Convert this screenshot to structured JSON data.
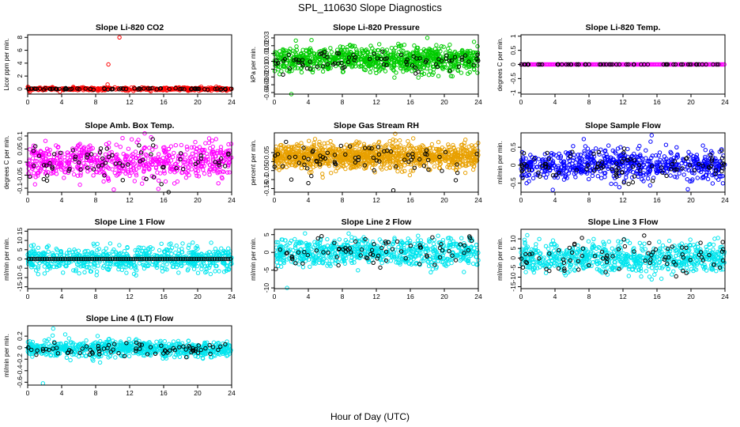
{
  "figure": {
    "title": "SPL_110630  Slope Diagnostics",
    "xlabel": "Hour of Day (UTC)"
  },
  "chart_data": [
    {
      "type": "scatter",
      "title": "Slope Li-820 CO2",
      "ylabel": "Licor ppm per min.",
      "xlim": [
        0,
        24
      ],
      "ylim": [
        -0.8,
        8.4
      ],
      "xticks": [
        0,
        4,
        8,
        12,
        16,
        20,
        24
      ],
      "yticks": [
        0,
        2,
        4,
        6,
        8
      ],
      "grid": false,
      "series": [
        {
          "color": "#ff0000",
          "style": "dense",
          "n": 380,
          "center": 0.0,
          "spread": 0.12,
          "outliers": [
            [
              9.5,
              3.8
            ],
            [
              10.8,
              8.0
            ],
            [
              9.4,
              0.7
            ],
            [
              3.8,
              -0.45
            ]
          ]
        },
        {
          "color": "#000000",
          "style": "hourly",
          "n": 75,
          "center": 0.0,
          "spread": 0.05
        }
      ]
    },
    {
      "type": "scatter",
      "title": "Slope Li-820 Pressure",
      "ylabel": "kPa per min.",
      "xlim": [
        0,
        24
      ],
      "ylim": [
        -0.042,
        0.034
      ],
      "xticks": [
        0,
        4,
        8,
        12,
        16,
        20,
        24
      ],
      "yticks": [
        -0.04,
        -0.03,
        -0.02,
        -0.01,
        0.0,
        0.01,
        0.02,
        0.03
      ],
      "grid": false,
      "series": [
        {
          "color": "#00cc00",
          "style": "dense",
          "n": 900,
          "center": 0.002,
          "spread": 0.008,
          "outliers": [
            [
              2.0,
              -0.043
            ],
            [
              18.0,
              0.03
            ],
            [
              23.5,
              0.025
            ]
          ]
        },
        {
          "color": "#000000",
          "style": "hourly",
          "n": 80,
          "center": 0.0,
          "spread": 0.006
        }
      ]
    },
    {
      "type": "scatter",
      "title": "Slope Li-820 Temp.",
      "ylabel": "degrees C per min.",
      "xlim": [
        0,
        24
      ],
      "ylim": [
        -1.05,
        1.05
      ],
      "xticks": [
        0,
        4,
        8,
        12,
        16,
        20,
        24
      ],
      "yticks": [
        -1.0,
        -0.5,
        0.0,
        0.5,
        1.0
      ],
      "grid": false,
      "series": [
        {
          "color": "#ff00ff",
          "style": "line",
          "n": 180,
          "center": 0.0,
          "spread": 0.0,
          "outliers": []
        },
        {
          "color": "#000000",
          "style": "hourly",
          "n": 60,
          "center": 0.0,
          "spread": 0.0
        }
      ]
    },
    {
      "type": "scatter",
      "title": "Slope Amb. Box Temp.",
      "ylabel": "degrees C per min.",
      "xlim": [
        0,
        24
      ],
      "ylim": [
        -0.115,
        0.112
      ],
      "xticks": [
        0,
        4,
        8,
        12,
        16,
        20,
        24
      ],
      "yticks": [
        -0.1,
        -0.05,
        0.0,
        0.05,
        0.1
      ],
      "grid": false,
      "series": [
        {
          "color": "#ff00ff",
          "style": "dense",
          "n": 650,
          "center": 0.0,
          "spread": 0.035,
          "outliers": []
        },
        {
          "color": "#000000",
          "style": "hourly",
          "n": 70,
          "center": 0.0,
          "spread": 0.035
        }
      ]
    },
    {
      "type": "scatter",
      "title": "Slope Gas Stream RH",
      "ylabel": "percent per min.",
      "xlim": [
        0,
        24
      ],
      "ylim": [
        -0.17,
        0.16
      ],
      "xticks": [
        0,
        4,
        8,
        12,
        16,
        20,
        24
      ],
      "yticks": [
        -0.15,
        -0.1,
        -0.05,
        0.0,
        0.05
      ],
      "grid": false,
      "series": [
        {
          "color": "#e8a000",
          "style": "dense",
          "n": 1100,
          "center": 0.03,
          "spread": 0.035,
          "outliers": []
        },
        {
          "color": "#000000",
          "style": "hourly",
          "n": 70,
          "center": 0.02,
          "spread": 0.04,
          "outliers": [
            [
              2.0,
              -0.1
            ],
            [
              4.0,
              -0.12
            ],
            [
              14.0,
              -0.16
            ]
          ]
        }
      ]
    },
    {
      "type": "scatter",
      "title": "Slope Sample Flow",
      "ylabel": "ml/min per min.",
      "xlim": [
        0,
        24
      ],
      "ylim": [
        -0.75,
        0.9
      ],
      "xticks": [
        0,
        4,
        8,
        12,
        16,
        20,
        24
      ],
      "yticks": [
        -0.5,
        0.0,
        0.5
      ],
      "grid": false,
      "series": [
        {
          "color": "#0000ff",
          "style": "dense",
          "n": 650,
          "center": 0.0,
          "spread": 0.22,
          "outliers": []
        },
        {
          "color": "#000000",
          "style": "hourly",
          "n": 90,
          "center": -0.05,
          "spread": 0.2
        }
      ]
    },
    {
      "type": "scatter",
      "title": "Slope Line 1 Flow",
      "ylabel": "ml/min per min.",
      "xlim": [
        0,
        24
      ],
      "ylim": [
        -16,
        16
      ],
      "xticks": [
        0,
        4,
        8,
        12,
        16,
        20,
        24
      ],
      "yticks": [
        -15,
        -10,
        -5,
        0,
        5,
        10,
        15
      ],
      "grid": false,
      "series": [
        {
          "color": "#00e5ee",
          "style": "dense",
          "n": 700,
          "center": 0.0,
          "spread": 3.2,
          "outliers": []
        },
        {
          "color": "#000000",
          "style": "line",
          "n": 90,
          "center": 0.0,
          "spread": 0.0
        }
      ]
    },
    {
      "type": "scatter",
      "title": "Slope Line 2 Flow",
      "ylabel": "ml/min per min.",
      "xlim": [
        0,
        24
      ],
      "ylim": [
        -10.2,
        6.5
      ],
      "xticks": [
        0,
        4,
        8,
        12,
        16,
        20,
        24
      ],
      "yticks": [
        -10,
        -5,
        0,
        5
      ],
      "grid": false,
      "series": [
        {
          "color": "#00e5ee",
          "style": "dense",
          "n": 700,
          "center": 0.0,
          "spread": 1.9,
          "outliers": [
            [
              1.5,
              -10.0
            ],
            [
              0.8,
              -4.0
            ]
          ]
        },
        {
          "color": "#000000",
          "style": "hourly",
          "n": 75,
          "center": 0.5,
          "spread": 2.0
        }
      ]
    },
    {
      "type": "scatter",
      "title": "Slope Line 3 Flow",
      "ylabel": "ml/min per min.",
      "xlim": [
        0,
        24
      ],
      "ylim": [
        -16,
        15
      ],
      "xticks": [
        0,
        4,
        8,
        12,
        16,
        20,
        24
      ],
      "yticks": [
        -15,
        -10,
        -5,
        0,
        5,
        10
      ],
      "grid": false,
      "series": [
        {
          "color": "#00e5ee",
          "style": "dense",
          "n": 700,
          "center": 0.0,
          "spread": 4.0,
          "outliers": []
        },
        {
          "color": "#000000",
          "style": "hourly",
          "n": 80,
          "center": 0.5,
          "spread": 4.0
        }
      ]
    },
    {
      "type": "scatter",
      "title": "Slope Line 4 (LT) Flow",
      "ylabel": "ml/min per min.",
      "xlim": [
        0,
        24
      ],
      "ylim": [
        -0.65,
        0.38
      ],
      "xticks": [
        0,
        4,
        8,
        12,
        16,
        20,
        24
      ],
      "yticks": [
        -0.6,
        -0.4,
        -0.2,
        0.0,
        0.2
      ],
      "grid": false,
      "series": [
        {
          "color": "#00e5ee",
          "style": "dense",
          "n": 750,
          "center": -0.02,
          "spread": 0.07,
          "outliers": [
            [
              1.8,
              -0.62
            ],
            [
              3.0,
              0.33
            ]
          ]
        },
        {
          "color": "#000000",
          "style": "hourly",
          "n": 75,
          "center": -0.03,
          "spread": 0.05
        }
      ]
    }
  ]
}
